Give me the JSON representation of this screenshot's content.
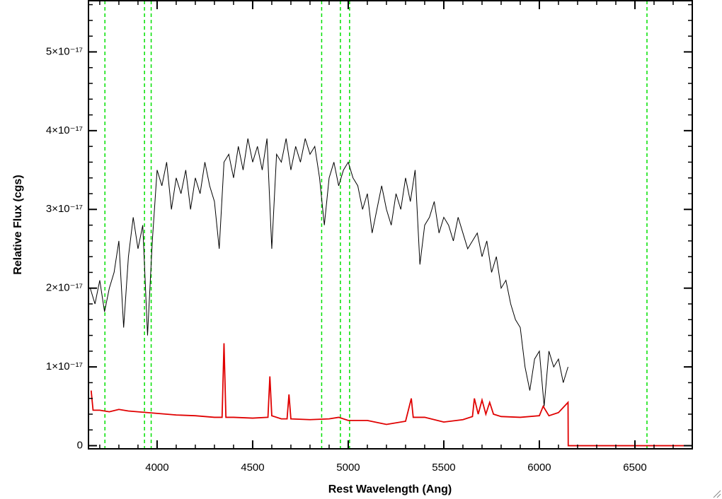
{
  "chart_data": {
    "type": "line",
    "xlabel": "Rest Wavelength (Ang)",
    "ylabel": "Relative Flux (cgs)",
    "xlim": [
      3641,
      6800
    ],
    "ylim": [
      -4e-19,
      5.65e-17
    ],
    "xticks": [
      4000,
      4500,
      5000,
      5500,
      6000,
      6500
    ],
    "yticks": [
      0,
      {
        "value": 1e-17,
        "label": "1×10⁻¹⁷"
      },
      {
        "value": 2e-17,
        "label": "2×10⁻¹⁷"
      },
      {
        "value": 3e-17,
        "label": "3×10⁻¹⁷"
      },
      {
        "value": 4e-17,
        "label": "4×10⁻¹⁷"
      },
      {
        "value": 5e-17,
        "label": "5×10⁻¹⁷"
      }
    ],
    "vlines": [
      3727,
      3934,
      3969,
      4861,
      4959,
      5007,
      6563
    ],
    "vline_color": "#00e000",
    "series": [
      {
        "color": "#000000",
        "x": [
          3650,
          3675,
          3700,
          3725,
          3750,
          3775,
          3800,
          3825,
          3850,
          3875,
          3900,
          3925,
          3950,
          3975,
          4000,
          4025,
          4050,
          4075,
          4100,
          4125,
          4150,
          4175,
          4200,
          4225,
          4250,
          4275,
          4300,
          4325,
          4350,
          4375,
          4400,
          4425,
          4450,
          4475,
          4500,
          4525,
          4550,
          4575,
          4600,
          4625,
          4650,
          4675,
          4700,
          4725,
          4750,
          4775,
          4800,
          4825,
          4850,
          4875,
          4900,
          4925,
          4950,
          4975,
          5000,
          5025,
          5050,
          5075,
          5100,
          5125,
          5150,
          5175,
          5200,
          5225,
          5250,
          5275,
          5300,
          5325,
          5350,
          5375,
          5400,
          5425,
          5450,
          5475,
          5500,
          5525,
          5550,
          5575,
          5600,
          5625,
          5650,
          5675,
          5700,
          5725,
          5750,
          5775,
          5800,
          5825,
          5850,
          5875,
          5900,
          5925,
          5950,
          5975,
          6000,
          6025,
          6050,
          6075,
          6100,
          6125,
          6150
        ],
        "values": [
          2e-17,
          1.8e-17,
          2.1e-17,
          1.7e-17,
          2e-17,
          2.2e-17,
          2.6e-17,
          1.5e-17,
          2.4e-17,
          2.9e-17,
          2.5e-17,
          2.8e-17,
          1.4e-17,
          2.6e-17,
          3.5e-17,
          3.3e-17,
          3.6e-17,
          3e-17,
          3.4e-17,
          3.2e-17,
          3.5e-17,
          3e-17,
          3.4e-17,
          3.2e-17,
          3.6e-17,
          3.3e-17,
          3.1e-17,
          2.5e-17,
          3.6e-17,
          3.7e-17,
          3.4e-17,
          3.8e-17,
          3.5e-17,
          3.9e-17,
          3.6e-17,
          3.8e-17,
          3.5e-17,
          3.9e-17,
          2.5e-17,
          3.7e-17,
          3.6e-17,
          3.9e-17,
          3.5e-17,
          3.8e-17,
          3.6e-17,
          3.9e-17,
          3.7e-17,
          3.8e-17,
          3.4e-17,
          2.8e-17,
          3.4e-17,
          3.6e-17,
          3.3e-17,
          3.5e-17,
          3.6e-17,
          3.4e-17,
          3.3e-17,
          3e-17,
          3.2e-17,
          2.7e-17,
          3e-17,
          3.3e-17,
          3e-17,
          2.8e-17,
          3.2e-17,
          3e-17,
          3.4e-17,
          3.1e-17,
          3.5e-17,
          2.3e-17,
          2.8e-17,
          2.9e-17,
          3.1e-17,
          2.7e-17,
          2.9e-17,
          2.8e-17,
          2.6e-17,
          2.9e-17,
          2.7e-17,
          2.5e-17,
          2.6e-17,
          2.7e-17,
          2.4e-17,
          2.6e-17,
          2.2e-17,
          2.4e-17,
          2e-17,
          2.1e-17,
          1.8e-17,
          1.6e-17,
          1.5e-17,
          1e-17,
          7e-18,
          1.1e-17,
          1.2e-17,
          5e-18,
          1.2e-17,
          1e-17,
          1.1e-17,
          8e-18,
          1e-17
        ]
      },
      {
        "color": "#e00000",
        "x": [
          3655,
          3665,
          3700,
          3750,
          3800,
          3850,
          3900,
          3950,
          4000,
          4100,
          4200,
          4300,
          4340,
          4350,
          4360,
          4400,
          4500,
          4580,
          4590,
          4600,
          4650,
          4680,
          4690,
          4700,
          4800,
          4900,
          4950,
          5000,
          5100,
          5200,
          5300,
          5330,
          5340,
          5400,
          5500,
          5600,
          5650,
          5660,
          5680,
          5700,
          5720,
          5740,
          5760,
          5800,
          5900,
          6000,
          6020,
          6050,
          6100,
          6150,
          6151,
          6800
        ],
        "values": [
          7e-18,
          4.5e-18,
          4.5e-18,
          4.3e-18,
          4.6e-18,
          4.4e-18,
          4.3e-18,
          4.2e-18,
          4.1e-18,
          3.9e-18,
          3.8e-18,
          3.6e-18,
          3.6e-18,
          1.3e-17,
          3.6e-18,
          3.6e-18,
          3.5e-18,
          3.6e-18,
          8.8e-18,
          3.8e-18,
          3.4e-18,
          3.4e-18,
          6.5e-18,
          3.4e-18,
          3.3e-18,
          3.4e-18,
          3.6e-18,
          3.2e-18,
          3.2e-18,
          2.7e-18,
          3.1e-18,
          6e-18,
          3.6e-18,
          3.6e-18,
          3e-18,
          3.3e-18,
          3.7e-18,
          6e-18,
          4e-18,
          5.8e-18,
          4e-18,
          5.5e-18,
          4e-18,
          3.7e-18,
          3.6e-18,
          3.8e-18,
          5e-18,
          3.8e-18,
          4.2e-18,
          5.5e-18,
          0,
          0
        ]
      }
    ]
  }
}
